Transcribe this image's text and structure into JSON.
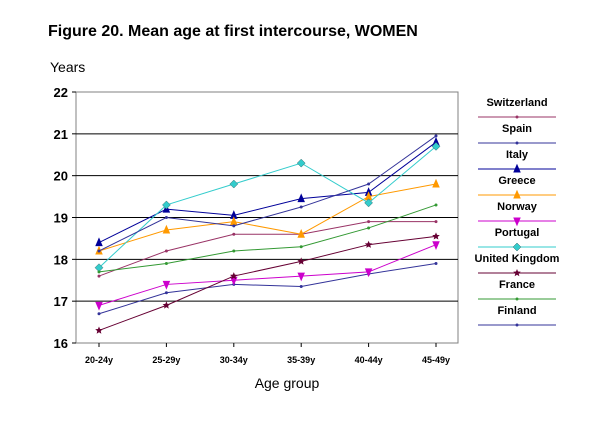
{
  "chart_data": {
    "type": "line",
    "title": "Figure 20. Mean age at first intercourse, WOMEN",
    "ylabel": "Years",
    "xlabel": "Age group",
    "categories": [
      "20-24y",
      "25-29y",
      "30-34y",
      "35-39y",
      "40-44y",
      "45-49y"
    ],
    "ylim": [
      16,
      22
    ],
    "yticks": [
      "16",
      "17",
      "18",
      "19",
      "20",
      "21",
      "22"
    ],
    "grid": true,
    "legend_position": "right",
    "series": [
      {
        "name": "Switzerland",
        "color": "#993366",
        "marker": "dot",
        "values": [
          17.6,
          18.2,
          18.6,
          18.6,
          18.9,
          18.9
        ]
      },
      {
        "name": "Spain",
        "color": "#333399",
        "marker": "dot",
        "values": [
          16.7,
          17.2,
          17.4,
          17.35,
          17.65,
          17.9
        ]
      },
      {
        "name": "Italy",
        "color": "#000099",
        "marker": "triangle",
        "values": [
          18.4,
          19.2,
          19.05,
          19.45,
          19.6,
          20.8
        ]
      },
      {
        "name": "Greece",
        "color": "#FF9900",
        "marker": "triangle",
        "values": [
          18.2,
          18.7,
          18.9,
          18.6,
          19.5,
          19.8
        ]
      },
      {
        "name": "Norway",
        "color": "#CC00CC",
        "marker": "triangle-down",
        "values": [
          16.9,
          17.4,
          17.5,
          17.6,
          17.7,
          18.35
        ]
      },
      {
        "name": "Portugal",
        "color": "#33CCCC",
        "marker": "diamond",
        "values": [
          17.8,
          19.3,
          19.8,
          20.3,
          19.35,
          20.7
        ]
      },
      {
        "name": "United Kingdom",
        "color": "#660033",
        "marker": "star",
        "values": [
          16.3,
          16.9,
          17.6,
          17.95,
          18.35,
          18.55
        ]
      },
      {
        "name": "France",
        "color": "#339933",
        "marker": "dot",
        "values": [
          17.7,
          17.9,
          18.2,
          18.3,
          18.75,
          19.3
        ]
      },
      {
        "name": "Finland",
        "color": "#333399",
        "marker": "dot",
        "values": [
          18.2,
          19.0,
          18.8,
          19.25,
          19.8,
          20.95
        ]
      }
    ]
  }
}
